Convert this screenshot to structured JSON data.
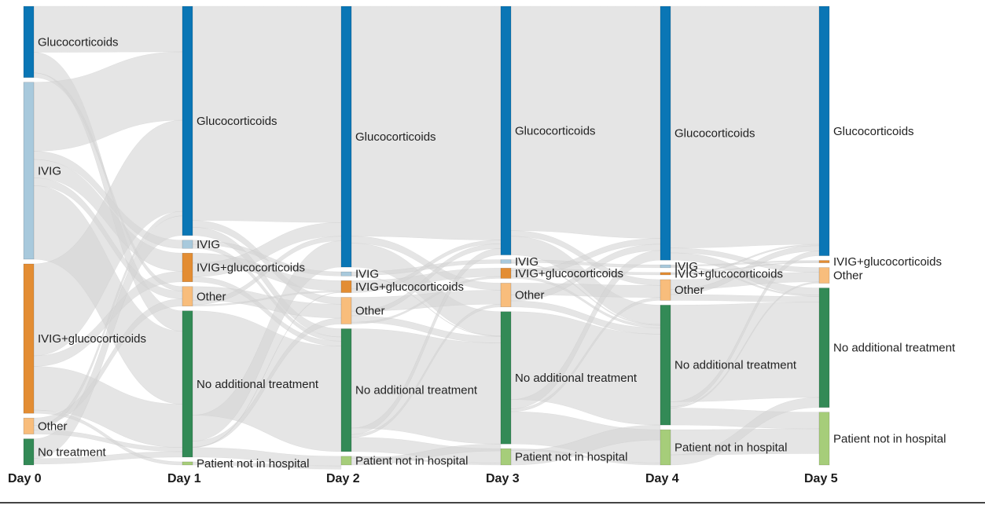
{
  "chart_data": {
    "type": "sankey",
    "days": [
      "Day 0",
      "Day 1",
      "Day 2",
      "Day 3",
      "Day 4",
      "Day 5"
    ],
    "colors": {
      "Glucocorticoids": "#0a76b5",
      "IVIG": "#a8c9dc",
      "IVIG+glucocorticoids": "#e38d33",
      "Other": "#f8bd7c",
      "No additional treatment": "#338a56",
      "No treatment": "#338a56",
      "Patient not in hospital": "#a6cd7a",
      "link": "#d3d3d3"
    },
    "columns": [
      {
        "day": "Day 0",
        "nodes": [
          {
            "label": "Glucocorticoids",
            "category": "Glucocorticoids",
            "share": 0.155
          },
          {
            "label": "IVIG",
            "category": "IVIG",
            "share": 0.385
          },
          {
            "label": "IVIG+glucocorticoids",
            "category": "IVIG+glucocorticoids",
            "share": 0.325
          },
          {
            "label": "Other",
            "category": "Other",
            "share": 0.035
          },
          {
            "label": "No treatment",
            "category": "No treatment",
            "share": 0.057
          }
        ]
      },
      {
        "day": "Day 1",
        "nodes": [
          {
            "label": "Glucocorticoids",
            "category": "Glucocorticoids",
            "share": 0.503
          },
          {
            "label": "IVIG",
            "category": "IVIG",
            "share": 0.018
          },
          {
            "label": "IVIG+glucocorticoids",
            "category": "IVIG+glucocorticoids",
            "share": 0.063
          },
          {
            "label": "Other",
            "category": "Other",
            "share": 0.043
          },
          {
            "label": "No additional treatment",
            "category": "No additional treatment",
            "share": 0.321
          },
          {
            "label": "Patient not in hospital",
            "category": "Patient not in hospital",
            "share": 0.007
          }
        ]
      },
      {
        "day": "Day 2",
        "nodes": [
          {
            "label": "Glucocorticoids",
            "category": "Glucocorticoids",
            "share": 0.567
          },
          {
            "label": "IVIG",
            "category": "IVIG",
            "share": 0.009
          },
          {
            "label": "IVIG+glucocorticoids",
            "category": "IVIG+glucocorticoids",
            "share": 0.026
          },
          {
            "label": "Other",
            "category": "Other",
            "share": 0.058
          },
          {
            "label": "No additional treatment",
            "category": "No additional treatment",
            "share": 0.267
          },
          {
            "label": "Patient not in hospital",
            "category": "Patient not in hospital",
            "share": 0.019
          }
        ]
      },
      {
        "day": "Day 3",
        "nodes": [
          {
            "label": "Glucocorticoids",
            "category": "Glucocorticoids",
            "share": 0.532
          },
          {
            "label": "IVIG",
            "category": "IVIG",
            "share": 0.008
          },
          {
            "label": "IVIG+glucocorticoids",
            "category": "IVIG+glucocorticoids",
            "share": 0.022
          },
          {
            "label": "Other",
            "category": "Other",
            "share": 0.051
          },
          {
            "label": "No additional treatment",
            "category": "No additional treatment",
            "share": 0.283
          },
          {
            "label": "Patient not in hospital",
            "category": "Patient not in hospital",
            "share": 0.035
          }
        ]
      },
      {
        "day": "Day 4",
        "nodes": [
          {
            "label": "Glucocorticoids",
            "category": "Glucocorticoids",
            "share": 0.525
          },
          {
            "label": "IVIG",
            "category": "IVIG",
            "share": 0.006
          },
          {
            "label": "IVIG+glucocorticoids",
            "category": "IVIG+glucocorticoids",
            "share": 0.005
          },
          {
            "label": "Other",
            "category": "Other",
            "share": 0.043
          },
          {
            "label": "No additional treatment",
            "category": "No additional treatment",
            "share": 0.248
          },
          {
            "label": "Patient not in hospital",
            "category": "Patient not in hospital",
            "share": 0.073
          }
        ]
      },
      {
        "day": "Day 5",
        "nodes": [
          {
            "label": "Glucocorticoids",
            "category": "Glucocorticoids",
            "share": 0.524
          },
          {
            "label": "IVIG+glucocorticoids",
            "category": "IVIG+glucocorticoids",
            "share": 0.005
          },
          {
            "label": "Other",
            "category": "Other",
            "share": 0.033
          },
          {
            "label": "No additional treatment",
            "category": "No additional treatment",
            "share": 0.251
          },
          {
            "label": "Patient not in hospital",
            "category": "Patient not in hospital",
            "share": 0.111
          }
        ]
      }
    ],
    "flows": [
      [
        {
          "from": "Glucocorticoids",
          "to": "Glucocorticoids",
          "value": 0.1
        },
        {
          "from": "Glucocorticoids",
          "to": "No additional treatment",
          "value": 0.045
        },
        {
          "from": "Glucocorticoids",
          "to": "Other",
          "value": 0.01
        },
        {
          "from": "IVIG",
          "to": "Glucocorticoids",
          "value": 0.15
        },
        {
          "from": "IVIG",
          "to": "IVIG",
          "value": 0.018
        },
        {
          "from": "IVIG",
          "to": "IVIG+glucocorticoids",
          "value": 0.04
        },
        {
          "from": "IVIG",
          "to": "Other",
          "value": 0.017
        },
        {
          "from": "IVIG",
          "to": "No additional treatment",
          "value": 0.16
        },
        {
          "from": "IVIG+glucocorticoids",
          "to": "Glucocorticoids",
          "value": 0.2
        },
        {
          "from": "IVIG+glucocorticoids",
          "to": "IVIG+glucocorticoids",
          "value": 0.023
        },
        {
          "from": "IVIG+glucocorticoids",
          "to": "No additional treatment",
          "value": 0.095
        },
        {
          "from": "IVIG+glucocorticoids",
          "to": "Patient not in hospital",
          "value": 0.007
        },
        {
          "from": "Other",
          "to": "Other",
          "value": 0.016
        },
        {
          "from": "Other",
          "to": "Glucocorticoids",
          "value": 0.01
        },
        {
          "from": "Other",
          "to": "No additional treatment",
          "value": 0.009
        },
        {
          "from": "No treatment",
          "to": "Glucocorticoids",
          "value": 0.043
        },
        {
          "from": "No treatment",
          "to": "No additional treatment",
          "value": 0.012
        }
      ],
      [
        {
          "from": "Glucocorticoids",
          "to": "Glucocorticoids",
          "value": 0.47
        },
        {
          "from": "Glucocorticoids",
          "to": "Other",
          "value": 0.015
        },
        {
          "from": "Glucocorticoids",
          "to": "No additional treatment",
          "value": 0.018
        },
        {
          "from": "IVIG",
          "to": "IVIG",
          "value": 0.009
        },
        {
          "from": "IVIG",
          "to": "No additional treatment",
          "value": 0.009
        },
        {
          "from": "IVIG+glucocorticoids",
          "to": "IVIG+glucocorticoids",
          "value": 0.022
        },
        {
          "from": "IVIG+glucocorticoids",
          "to": "Glucocorticoids",
          "value": 0.03
        },
        {
          "from": "IVIG+glucocorticoids",
          "to": "No additional treatment",
          "value": 0.011
        },
        {
          "from": "Other",
          "to": "Other",
          "value": 0.03
        },
        {
          "from": "Other",
          "to": "Glucocorticoids",
          "value": 0.01
        },
        {
          "from": "Other",
          "to": "IVIG+glucocorticoids",
          "value": 0.003
        },
        {
          "from": "No additional treatment",
          "to": "No additional treatment",
          "value": 0.229
        },
        {
          "from": "No additional treatment",
          "to": "Glucocorticoids",
          "value": 0.057
        },
        {
          "from": "No additional treatment",
          "to": "Other",
          "value": 0.013
        },
        {
          "from": "No additional treatment",
          "to": "IVIG+glucocorticoids",
          "value": 0.001
        },
        {
          "from": "No additional treatment",
          "to": "Patient not in hospital",
          "value": 0.021
        },
        {
          "from": "Patient not in hospital",
          "to": "Patient not in hospital",
          "value": 0.007
        }
      ],
      [
        {
          "from": "Glucocorticoids",
          "to": "Glucocorticoids",
          "value": 0.5
        },
        {
          "from": "Glucocorticoids",
          "to": "Other",
          "value": 0.015
        },
        {
          "from": "Glucocorticoids",
          "to": "No additional treatment",
          "value": 0.052
        },
        {
          "from": "IVIG",
          "to": "IVIG",
          "value": 0.008
        },
        {
          "from": "IVIG",
          "to": "No additional treatment",
          "value": 0.001
        },
        {
          "from": "IVIG+glucocorticoids",
          "to": "IVIG+glucocorticoids",
          "value": 0.018
        },
        {
          "from": "IVIG+glucocorticoids",
          "to": "Glucocorticoids",
          "value": 0.008
        },
        {
          "from": "Other",
          "to": "Other",
          "value": 0.03
        },
        {
          "from": "Other",
          "to": "Glucocorticoids",
          "value": 0.01
        },
        {
          "from": "Other",
          "to": "No additional treatment",
          "value": 0.014
        },
        {
          "from": "Other",
          "to": "IVIG+glucocorticoids",
          "value": 0.004
        },
        {
          "from": "No additional treatment",
          "to": "No additional treatment",
          "value": 0.216
        },
        {
          "from": "No additional treatment",
          "to": "Glucocorticoids",
          "value": 0.014
        },
        {
          "from": "No additional treatment",
          "to": "Other",
          "value": 0.006
        },
        {
          "from": "No additional treatment",
          "to": "Patient not in hospital",
          "value": 0.031
        },
        {
          "from": "Patient not in hospital",
          "to": "Patient not in hospital",
          "value": 0.004
        },
        {
          "from": "Patient not in hospital",
          "to": "No additional treatment",
          "value": 0.015
        }
      ],
      [
        {
          "from": "Glucocorticoids",
          "to": "Glucocorticoids",
          "value": 0.48
        },
        {
          "from": "Glucocorticoids",
          "to": "Other",
          "value": 0.012
        },
        {
          "from": "Glucocorticoids",
          "to": "No additional treatment",
          "value": 0.04
        },
        {
          "from": "IVIG",
          "to": "IVIG",
          "value": 0.006
        },
        {
          "from": "IVIG",
          "to": "No additional treatment",
          "value": 0.002
        },
        {
          "from": "IVIG+glucocorticoids",
          "to": "IVIG+glucocorticoids",
          "value": 0.005
        },
        {
          "from": "IVIG+glucocorticoids",
          "to": "Glucocorticoids",
          "value": 0.012
        },
        {
          "from": "IVIG+glucocorticoids",
          "to": "No additional treatment",
          "value": 0.005
        },
        {
          "from": "Other",
          "to": "Other",
          "value": 0.025
        },
        {
          "from": "Other",
          "to": "Glucocorticoids",
          "value": 0.013
        },
        {
          "from": "Other",
          "to": "No additional treatment",
          "value": 0.013
        },
        {
          "from": "No additional treatment",
          "to": "No additional treatment",
          "value": 0.188
        },
        {
          "from": "No additional treatment",
          "to": "Glucocorticoids",
          "value": 0.02
        },
        {
          "from": "No additional treatment",
          "to": "Other",
          "value": 0.006
        },
        {
          "from": "No additional treatment",
          "to": "Patient not in hospital",
          "value": 0.069
        },
        {
          "from": "Patient not in hospital",
          "to": "Patient not in hospital",
          "value": 0.004
        },
        {
          "from": "Patient not in hospital",
          "to": "No additional treatment",
          "value": 0.031
        }
      ],
      [
        {
          "from": "Glucocorticoids",
          "to": "Glucocorticoids",
          "value": 0.5
        },
        {
          "from": "Glucocorticoids",
          "to": "Other",
          "value": 0.01
        },
        {
          "from": "Glucocorticoids",
          "to": "No additional treatment",
          "value": 0.015
        },
        {
          "from": "IVIG",
          "to": "IVIG+glucocorticoids",
          "value": 0.003
        },
        {
          "from": "IVIG",
          "to": "No additional treatment",
          "value": 0.003
        },
        {
          "from": "IVIG+glucocorticoids",
          "to": "IVIG+glucocorticoids",
          "value": 0.002
        },
        {
          "from": "IVIG+glucocorticoids",
          "to": "Glucocorticoids",
          "value": 0.003
        },
        {
          "from": "Other",
          "to": "Other",
          "value": 0.02
        },
        {
          "from": "Other",
          "to": "Glucocorticoids",
          "value": 0.011
        },
        {
          "from": "Other",
          "to": "No additional treatment",
          "value": 0.012
        },
        {
          "from": "No additional treatment",
          "to": "No additional treatment",
          "value": 0.2
        },
        {
          "from": "No additional treatment",
          "to": "Glucocorticoids",
          "value": 0.01
        },
        {
          "from": "No additional treatment",
          "to": "Other",
          "value": 0.003
        },
        {
          "from": "No additional treatment",
          "to": "Patient not in hospital",
          "value": 0.035
        },
        {
          "from": "Patient not in hospital",
          "to": "Patient not in hospital",
          "value": 0.052
        },
        {
          "from": "Patient not in hospital",
          "to": "No additional treatment",
          "value": 0.021
        }
      ]
    ]
  }
}
